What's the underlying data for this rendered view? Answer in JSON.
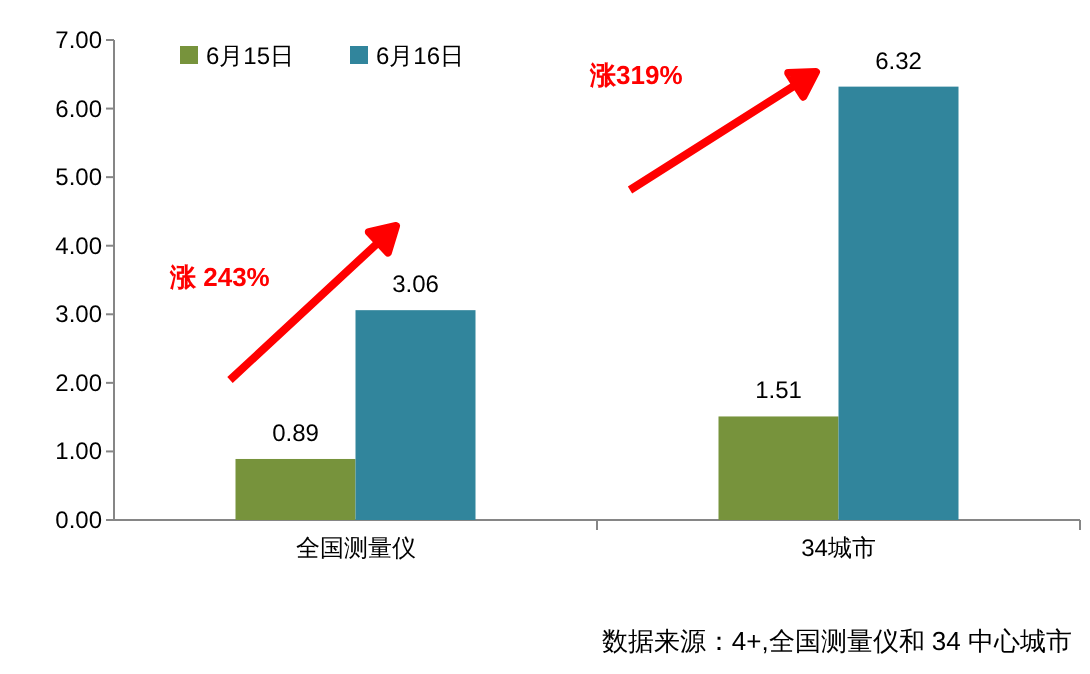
{
  "chart_data": {
    "type": "bar",
    "categories": [
      "全国测量仪",
      "34城市"
    ],
    "series": [
      {
        "name": "6月15日",
        "color": "#77933c",
        "values": [
          0.89,
          1.51
        ]
      },
      {
        "name": "6月16日",
        "color": "#31859c",
        "values": [
          3.06,
          6.32
        ]
      }
    ],
    "ylim": [
      0,
      7
    ],
    "yticks": [
      {
        "value": 0,
        "label": "0.00"
      },
      {
        "value": 1,
        "label": "1.00"
      },
      {
        "value": 2,
        "label": "2.00"
      },
      {
        "value": 3,
        "label": "3.00"
      },
      {
        "value": 4,
        "label": "4.00"
      },
      {
        "value": 5,
        "label": "5.00"
      },
      {
        "value": 6,
        "label": "6.00"
      },
      {
        "value": 7,
        "label": "7.00"
      }
    ],
    "data_labels": true,
    "grid": false,
    "legend": "top left",
    "annotations": [
      "涨 243%",
      "涨319%",
      "数据来源：4+,全国测量仪和 34 中心城市"
    ]
  }
}
